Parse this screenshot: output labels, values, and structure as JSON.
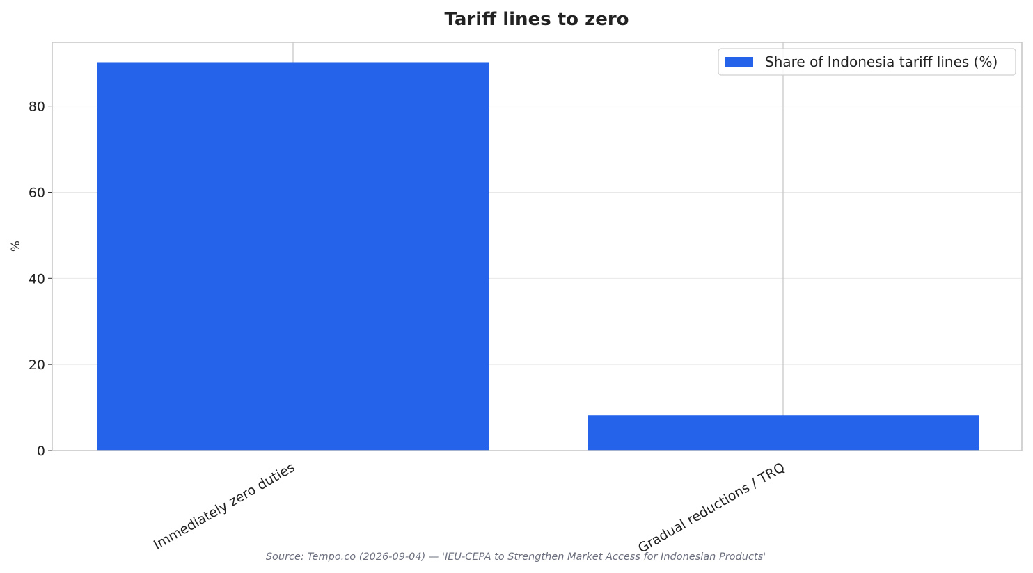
{
  "chart_data": {
    "type": "bar",
    "title": "Tariff lines to zero",
    "categories": [
      "Immediately zero duties",
      "Gradual reductions / TRQ"
    ],
    "series": [
      {
        "name": "Share of Indonesia tariff lines (%)",
        "values": [
          90.2,
          8.2
        ]
      }
    ],
    "ylabel": "%",
    "xlabel": "",
    "ylim": [
      0,
      94.8
    ],
    "yticks": [
      0,
      20,
      40,
      60,
      80
    ],
    "grid": true,
    "legend_position": "top-right",
    "colors": {
      "bar": "#2563eb",
      "grid": "#e8e8e8",
      "frame": "#c8c8c8"
    },
    "source": "Source: Tempo.co (2026-09-04) — 'IEU-CEPA to Strengthen Market Access for Indonesian Products'"
  }
}
